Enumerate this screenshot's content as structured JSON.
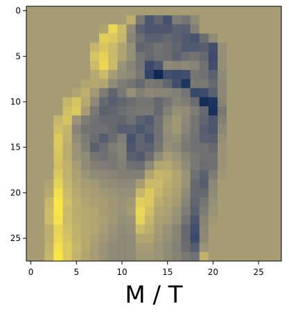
{
  "chart_data": {
    "type": "heatmap",
    "title": "",
    "xlabel": "M / T",
    "ylabel": "",
    "rows": 28,
    "cols": 28,
    "xticks": [
      0,
      5,
      10,
      15,
      20,
      25
    ],
    "yticks": [
      0,
      5,
      10,
      15,
      20,
      25
    ],
    "xlim": [
      -0.5,
      27.5
    ],
    "ylim": [
      27.5,
      -0.5
    ],
    "grid": false,
    "colormap": "cividis",
    "colormap_stops": [
      "#00204c",
      "#31446b",
      "#666970",
      "#958f78",
      "#cbba69",
      "#ffea46"
    ],
    "value_range": [
      0,
      1
    ],
    "values": [
      [
        0.66,
        0.66,
        0.66,
        0.66,
        0.66,
        0.66,
        0.66,
        0.66,
        0.66,
        0.66,
        0.66,
        0.66,
        0.66,
        0.66,
        0.66,
        0.66,
        0.66,
        0.66,
        0.66,
        0.66,
        0.66,
        0.66,
        0.66,
        0.66,
        0.66,
        0.66,
        0.66,
        0.66
      ],
      [
        0.66,
        0.66,
        0.66,
        0.66,
        0.66,
        0.66,
        0.66,
        0.66,
        0.66,
        0.66,
        0.66,
        0.75,
        0.48,
        0.3,
        0.38,
        0.28,
        0.5,
        0.46,
        0.58,
        0.66,
        0.66,
        0.66,
        0.66,
        0.66,
        0.66,
        0.66,
        0.66,
        0.66
      ],
      [
        0.66,
        0.66,
        0.66,
        0.66,
        0.66,
        0.66,
        0.66,
        0.66,
        0.7,
        0.92,
        0.8,
        0.58,
        0.36,
        0.3,
        0.3,
        0.3,
        0.36,
        0.34,
        0.52,
        0.66,
        0.66,
        0.66,
        0.66,
        0.66,
        0.66,
        0.66,
        0.66,
        0.66
      ],
      [
        0.66,
        0.66,
        0.66,
        0.66,
        0.66,
        0.66,
        0.66,
        0.66,
        0.88,
        0.86,
        0.78,
        0.54,
        0.42,
        0.36,
        0.36,
        0.4,
        0.36,
        0.32,
        0.28,
        0.42,
        0.58,
        0.66,
        0.66,
        0.66,
        0.66,
        0.66,
        0.66,
        0.66
      ],
      [
        0.66,
        0.66,
        0.66,
        0.66,
        0.66,
        0.66,
        0.66,
        0.78,
        0.85,
        0.8,
        0.7,
        0.6,
        0.38,
        0.4,
        0.45,
        0.42,
        0.38,
        0.32,
        0.32,
        0.34,
        0.26,
        0.6,
        0.66,
        0.66,
        0.66,
        0.66,
        0.66,
        0.66
      ],
      [
        0.66,
        0.66,
        0.66,
        0.66,
        0.66,
        0.66,
        0.66,
        0.84,
        0.9,
        0.8,
        0.7,
        0.6,
        0.46,
        0.4,
        0.44,
        0.42,
        0.36,
        0.42,
        0.45,
        0.4,
        0.24,
        0.6,
        0.66,
        0.66,
        0.66,
        0.66,
        0.66,
        0.66
      ],
      [
        0.66,
        0.66,
        0.66,
        0.66,
        0.66,
        0.66,
        0.66,
        0.8,
        0.92,
        0.8,
        0.62,
        0.54,
        0.46,
        0.24,
        0.3,
        0.56,
        0.54,
        0.56,
        0.54,
        0.44,
        0.26,
        0.6,
        0.66,
        0.66,
        0.66,
        0.66,
        0.66,
        0.66
      ],
      [
        0.66,
        0.66,
        0.66,
        0.66,
        0.66,
        0.66,
        0.66,
        0.72,
        0.8,
        0.66,
        0.6,
        0.56,
        0.48,
        0.2,
        0.06,
        0.26,
        0.24,
        0.26,
        0.46,
        0.44,
        0.36,
        0.58,
        0.66,
        0.66,
        0.66,
        0.66,
        0.66,
        0.66
      ],
      [
        0.66,
        0.66,
        0.66,
        0.66,
        0.66,
        0.66,
        0.7,
        0.72,
        0.7,
        0.58,
        0.5,
        0.46,
        0.4,
        0.48,
        0.46,
        0.38,
        0.26,
        0.12,
        0.48,
        0.48,
        0.4,
        0.56,
        0.66,
        0.66,
        0.66,
        0.66,
        0.66,
        0.66
      ],
      [
        0.66,
        0.66,
        0.66,
        0.66,
        0.66,
        0.7,
        0.75,
        0.64,
        0.5,
        0.38,
        0.48,
        0.6,
        0.52,
        0.56,
        0.54,
        0.54,
        0.52,
        0.46,
        0.22,
        0.24,
        0.36,
        0.56,
        0.66,
        0.66,
        0.66,
        0.66,
        0.66,
        0.66
      ],
      [
        0.66,
        0.66,
        0.66,
        0.66,
        0.78,
        0.84,
        0.72,
        0.56,
        0.4,
        0.34,
        0.38,
        0.42,
        0.46,
        0.46,
        0.4,
        0.46,
        0.54,
        0.5,
        0.42,
        0.08,
        0.12,
        0.54,
        0.66,
        0.66,
        0.66,
        0.66,
        0.66,
        0.66
      ],
      [
        0.66,
        0.66,
        0.66,
        0.66,
        0.82,
        0.86,
        0.66,
        0.48,
        0.36,
        0.38,
        0.42,
        0.46,
        0.48,
        0.48,
        0.4,
        0.52,
        0.6,
        0.58,
        0.5,
        0.4,
        0.1,
        0.48,
        0.66,
        0.66,
        0.66,
        0.66,
        0.66,
        0.66
      ],
      [
        0.66,
        0.66,
        0.66,
        0.78,
        0.84,
        0.62,
        0.5,
        0.44,
        0.4,
        0.4,
        0.38,
        0.44,
        0.36,
        0.32,
        0.44,
        0.58,
        0.64,
        0.56,
        0.46,
        0.38,
        0.3,
        0.52,
        0.66,
        0.66,
        0.66,
        0.66,
        0.66,
        0.66
      ],
      [
        0.66,
        0.66,
        0.66,
        0.82,
        0.78,
        0.54,
        0.46,
        0.44,
        0.44,
        0.4,
        0.34,
        0.36,
        0.3,
        0.36,
        0.44,
        0.6,
        0.64,
        0.54,
        0.46,
        0.34,
        0.3,
        0.56,
        0.66,
        0.66,
        0.66,
        0.66,
        0.66,
        0.66
      ],
      [
        0.66,
        0.66,
        0.66,
        0.86,
        0.76,
        0.58,
        0.5,
        0.42,
        0.34,
        0.42,
        0.5,
        0.28,
        0.38,
        0.3,
        0.44,
        0.58,
        0.6,
        0.5,
        0.44,
        0.36,
        0.34,
        0.6,
        0.66,
        0.66,
        0.66,
        0.66,
        0.66,
        0.66
      ],
      [
        0.66,
        0.66,
        0.66,
        0.86,
        0.74,
        0.62,
        0.52,
        0.36,
        0.42,
        0.5,
        0.54,
        0.3,
        0.38,
        0.36,
        0.46,
        0.6,
        0.56,
        0.48,
        0.44,
        0.44,
        0.4,
        0.62,
        0.66,
        0.66,
        0.66,
        0.66,
        0.66,
        0.66
      ],
      [
        0.66,
        0.66,
        0.66,
        0.84,
        0.74,
        0.62,
        0.58,
        0.46,
        0.44,
        0.48,
        0.54,
        0.36,
        0.32,
        0.42,
        0.58,
        0.66,
        0.62,
        0.54,
        0.48,
        0.44,
        0.44,
        0.62,
        0.66,
        0.66,
        0.66,
        0.66,
        0.66,
        0.66
      ],
      [
        0.66,
        0.66,
        0.66,
        0.82,
        0.76,
        0.66,
        0.58,
        0.52,
        0.5,
        0.48,
        0.52,
        0.44,
        0.42,
        0.56,
        0.7,
        0.72,
        0.66,
        0.58,
        0.48,
        0.42,
        0.44,
        0.62,
        0.66,
        0.66,
        0.66,
        0.66,
        0.66,
        0.66
      ],
      [
        0.66,
        0.66,
        0.66,
        0.86,
        0.76,
        0.68,
        0.62,
        0.58,
        0.56,
        0.54,
        0.52,
        0.52,
        0.52,
        0.7,
        0.78,
        0.76,
        0.7,
        0.62,
        0.44,
        0.36,
        0.5,
        0.64,
        0.66,
        0.66,
        0.66,
        0.66,
        0.66,
        0.66
      ],
      [
        0.66,
        0.66,
        0.7,
        0.9,
        0.78,
        0.7,
        0.66,
        0.64,
        0.6,
        0.58,
        0.56,
        0.56,
        0.66,
        0.8,
        0.8,
        0.74,
        0.7,
        0.62,
        0.4,
        0.34,
        0.56,
        0.66,
        0.66,
        0.66,
        0.66,
        0.66,
        0.66,
        0.66
      ],
      [
        0.66,
        0.66,
        0.72,
        0.95,
        0.8,
        0.72,
        0.68,
        0.66,
        0.64,
        0.62,
        0.6,
        0.6,
        0.78,
        0.86,
        0.78,
        0.72,
        0.68,
        0.58,
        0.4,
        0.4,
        0.58,
        0.66,
        0.66,
        0.66,
        0.66,
        0.66,
        0.66,
        0.66
      ],
      [
        0.66,
        0.66,
        0.78,
        0.98,
        0.82,
        0.74,
        0.7,
        0.68,
        0.66,
        0.64,
        0.62,
        0.64,
        0.88,
        0.86,
        0.74,
        0.7,
        0.66,
        0.54,
        0.38,
        0.46,
        0.6,
        0.66,
        0.66,
        0.66,
        0.66,
        0.66,
        0.66,
        0.66
      ],
      [
        0.66,
        0.66,
        0.8,
        0.98,
        0.8,
        0.74,
        0.72,
        0.7,
        0.66,
        0.64,
        0.62,
        0.66,
        0.92,
        0.82,
        0.7,
        0.68,
        0.62,
        0.5,
        0.36,
        0.5,
        0.62,
        0.66,
        0.66,
        0.66,
        0.66,
        0.66,
        0.66,
        0.66
      ],
      [
        0.66,
        0.66,
        0.8,
        0.96,
        0.8,
        0.74,
        0.72,
        0.7,
        0.68,
        0.64,
        0.6,
        0.62,
        0.9,
        0.78,
        0.68,
        0.66,
        0.6,
        0.46,
        0.3,
        0.54,
        0.64,
        0.66,
        0.66,
        0.66,
        0.66,
        0.66,
        0.66,
        0.66
      ],
      [
        0.66,
        0.66,
        0.74,
        0.9,
        0.82,
        0.76,
        0.72,
        0.7,
        0.66,
        0.62,
        0.58,
        0.6,
        0.8,
        0.74,
        0.66,
        0.62,
        0.54,
        0.4,
        0.26,
        0.56,
        0.66,
        0.66,
        0.66,
        0.66,
        0.66,
        0.66,
        0.66,
        0.66
      ],
      [
        0.66,
        0.66,
        0.74,
        0.92,
        0.84,
        0.76,
        0.72,
        0.68,
        0.64,
        0.6,
        0.56,
        0.58,
        0.7,
        0.7,
        0.64,
        0.6,
        0.54,
        0.4,
        0.24,
        0.56,
        0.66,
        0.66,
        0.66,
        0.66,
        0.66,
        0.66,
        0.66,
        0.66
      ],
      [
        0.66,
        0.66,
        0.76,
        0.96,
        0.86,
        0.78,
        0.72,
        0.66,
        0.62,
        0.58,
        0.56,
        0.58,
        0.66,
        0.66,
        0.62,
        0.58,
        0.52,
        0.42,
        0.34,
        0.62,
        0.66,
        0.66,
        0.66,
        0.66,
        0.66,
        0.66,
        0.66,
        0.66
      ],
      [
        0.66,
        0.66,
        0.78,
        0.98,
        0.86,
        0.76,
        0.7,
        0.66,
        0.62,
        0.58,
        0.56,
        0.58,
        0.64,
        0.64,
        0.62,
        0.58,
        0.54,
        0.48,
        0.44,
        0.76,
        0.66,
        0.66,
        0.66,
        0.66,
        0.66,
        0.66,
        0.66,
        0.66
      ]
    ]
  }
}
